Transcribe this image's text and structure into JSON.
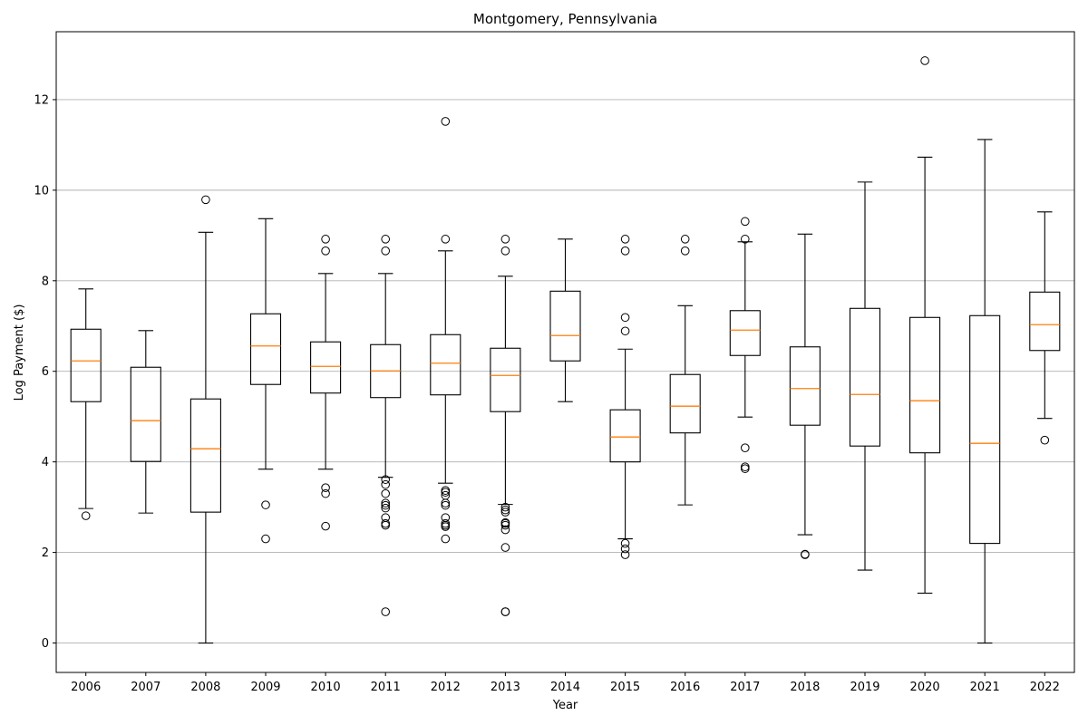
{
  "chart_data": {
    "type": "box",
    "title": "Montgomery, Pennsylvania",
    "xlabel": "Year",
    "ylabel": "Log Payment ($)",
    "ylim": [
      -0.65,
      13.5
    ],
    "yticks": [
      0,
      2,
      4,
      6,
      8,
      10,
      12
    ],
    "grid": "horizontal",
    "colors": {
      "median": "#ff7f0e",
      "box": "#000000",
      "grid": "#b0b0b0"
    },
    "categories": [
      "2006",
      "2007",
      "2008",
      "2009",
      "2010",
      "2011",
      "2012",
      "2013",
      "2014",
      "2015",
      "2016",
      "2017",
      "2018",
      "2019",
      "2020",
      "2021",
      "2022"
    ],
    "boxes": [
      {
        "category": "2006",
        "whislo": 2.97,
        "q1": 5.33,
        "med": 6.23,
        "q3": 6.93,
        "whishi": 7.82,
        "fliers": [
          2.81
        ]
      },
      {
        "category": "2007",
        "whislo": 2.87,
        "q1": 4.01,
        "med": 4.91,
        "q3": 6.09,
        "whishi": 6.9,
        "fliers": []
      },
      {
        "category": "2008",
        "whislo": 0.0,
        "q1": 2.89,
        "med": 4.29,
        "q3": 5.39,
        "whishi": 9.07,
        "fliers": [
          9.79
        ]
      },
      {
        "category": "2009",
        "whislo": 3.84,
        "q1": 5.71,
        "med": 6.56,
        "q3": 7.27,
        "whishi": 9.37,
        "fliers": [
          3.05,
          2.3
        ]
      },
      {
        "category": "2010",
        "whislo": 3.84,
        "q1": 5.52,
        "med": 6.11,
        "q3": 6.65,
        "whishi": 8.16,
        "fliers": [
          8.92,
          8.66,
          3.43,
          3.3,
          2.58
        ]
      },
      {
        "category": "2011",
        "whislo": 3.66,
        "q1": 5.42,
        "med": 6.01,
        "q3": 6.59,
        "whishi": 8.16,
        "fliers": [
          8.92,
          8.66,
          3.61,
          3.5,
          3.3,
          3.09,
          3.04,
          2.98,
          2.77,
          2.64,
          2.6,
          0.69
        ]
      },
      {
        "category": "2012",
        "whislo": 3.53,
        "q1": 5.48,
        "med": 6.18,
        "q3": 6.81,
        "whishi": 8.66,
        "fliers": [
          11.52,
          8.92,
          3.37,
          3.33,
          3.26,
          3.09,
          3.04,
          2.77,
          2.64,
          2.6,
          2.57,
          2.3
        ]
      },
      {
        "category": "2013",
        "whislo": 3.06,
        "q1": 5.11,
        "med": 5.91,
        "q3": 6.51,
        "whishi": 8.1,
        "fliers": [
          8.92,
          8.66,
          3.0,
          2.94,
          2.89,
          2.66,
          2.64,
          2.6,
          2.5,
          2.11,
          0.69,
          0.69
        ]
      },
      {
        "category": "2014",
        "whislo": 5.33,
        "q1": 6.23,
        "med": 6.79,
        "q3": 7.77,
        "whishi": 8.92,
        "fliers": []
      },
      {
        "category": "2015",
        "whislo": 2.3,
        "q1": 4.0,
        "med": 4.55,
        "q3": 5.15,
        "whishi": 6.49,
        "fliers": [
          8.92,
          8.66,
          7.19,
          6.89,
          2.2,
          2.08,
          1.95
        ]
      },
      {
        "category": "2016",
        "whislo": 3.05,
        "q1": 4.64,
        "med": 5.23,
        "q3": 5.93,
        "whishi": 7.45,
        "fliers": [
          8.92,
          8.66
        ]
      },
      {
        "category": "2017",
        "whislo": 4.99,
        "q1": 6.35,
        "med": 6.91,
        "q3": 7.34,
        "whishi": 8.86,
        "fliers": [
          9.31,
          8.92,
          4.31,
          3.89,
          3.85
        ]
      },
      {
        "category": "2018",
        "whislo": 2.39,
        "q1": 4.81,
        "med": 5.62,
        "q3": 6.54,
        "whishi": 9.03,
        "fliers": [
          1.96,
          1.95
        ]
      },
      {
        "category": "2019",
        "whislo": 1.61,
        "q1": 4.35,
        "med": 5.49,
        "q3": 7.39,
        "whishi": 10.18,
        "fliers": []
      },
      {
        "category": "2020",
        "whislo": 1.1,
        "q1": 4.2,
        "med": 5.35,
        "q3": 7.19,
        "whishi": 10.73,
        "fliers": [
          12.86
        ]
      },
      {
        "category": "2021",
        "whislo": 0.0,
        "q1": 2.2,
        "med": 4.41,
        "q3": 7.23,
        "whishi": 11.12,
        "fliers": []
      },
      {
        "category": "2022",
        "whislo": 4.96,
        "q1": 6.46,
        "med": 7.03,
        "q3": 7.75,
        "whishi": 9.52,
        "fliers": [
          4.48
        ]
      }
    ]
  }
}
